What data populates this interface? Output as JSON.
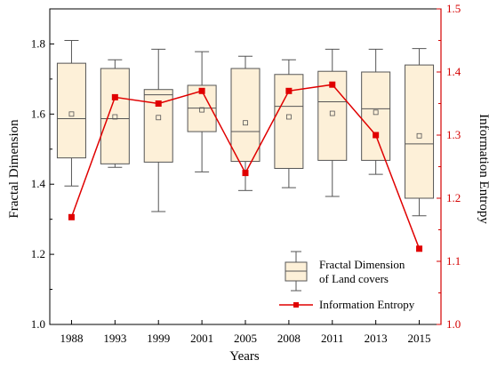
{
  "chart_data": {
    "type": "box+line",
    "categories": [
      "1988",
      "1993",
      "1999",
      "2001",
      "2005",
      "2008",
      "2011",
      "2013",
      "2015"
    ],
    "xlabel": "Years",
    "ylabel_left": "Fractal Dimension",
    "ylabel_right": "Information Entropy",
    "ylim_left": [
      1.0,
      1.9
    ],
    "ylim_right": [
      1.0,
      1.5
    ],
    "yticks_left": [
      "1.0",
      "1.2",
      "1.4",
      "1.6",
      "1.8"
    ],
    "yticks_right": [
      "1.0",
      "1.1",
      "1.2",
      "1.3",
      "1.4",
      "1.5"
    ],
    "box_series": {
      "name": "Fractal Dimension of Land covers",
      "fill": "#fdf0d8",
      "stroke": "#555555",
      "boxes": [
        {
          "whisker_low": 1.395,
          "q1": 1.475,
          "median": 1.587,
          "q3": 1.745,
          "whisker_high": 1.81,
          "mean": 1.6
        },
        {
          "whisker_low": 1.448,
          "q1": 1.458,
          "median": 1.587,
          "q3": 1.73,
          "whisker_high": 1.755,
          "mean": 1.592
        },
        {
          "whisker_low": 1.322,
          "q1": 1.463,
          "median": 1.655,
          "q3": 1.67,
          "whisker_high": 1.785,
          "mean": 1.59
        },
        {
          "whisker_low": 1.435,
          "q1": 1.55,
          "median": 1.617,
          "q3": 1.682,
          "whisker_high": 1.778,
          "mean": 1.612
        },
        {
          "whisker_low": 1.382,
          "q1": 1.465,
          "median": 1.55,
          "q3": 1.73,
          "whisker_high": 1.765,
          "mean": 1.575
        },
        {
          "whisker_low": 1.39,
          "q1": 1.445,
          "median": 1.622,
          "q3": 1.713,
          "whisker_high": 1.755,
          "mean": 1.592
        },
        {
          "whisker_low": 1.365,
          "q1": 1.468,
          "median": 1.635,
          "q3": 1.722,
          "whisker_high": 1.785,
          "mean": 1.602
        },
        {
          "whisker_low": 1.428,
          "q1": 1.468,
          "median": 1.615,
          "q3": 1.72,
          "whisker_high": 1.785,
          "mean": 1.605
        },
        {
          "whisker_low": 1.31,
          "q1": 1.36,
          "median": 1.515,
          "q3": 1.74,
          "whisker_high": 1.787,
          "mean": 1.538
        }
      ]
    },
    "line_series": {
      "name": "Information Entropy",
      "color": "#e00000",
      "values": [
        1.17,
        1.36,
        1.35,
        1.37,
        1.24,
        1.37,
        1.38,
        1.3,
        1.12
      ]
    },
    "legend": {
      "position": "bottom-right",
      "box_label_line1": "Fractal Dimension",
      "box_label_line2": "of Land covers",
      "line_label": "Information Entropy"
    }
  }
}
